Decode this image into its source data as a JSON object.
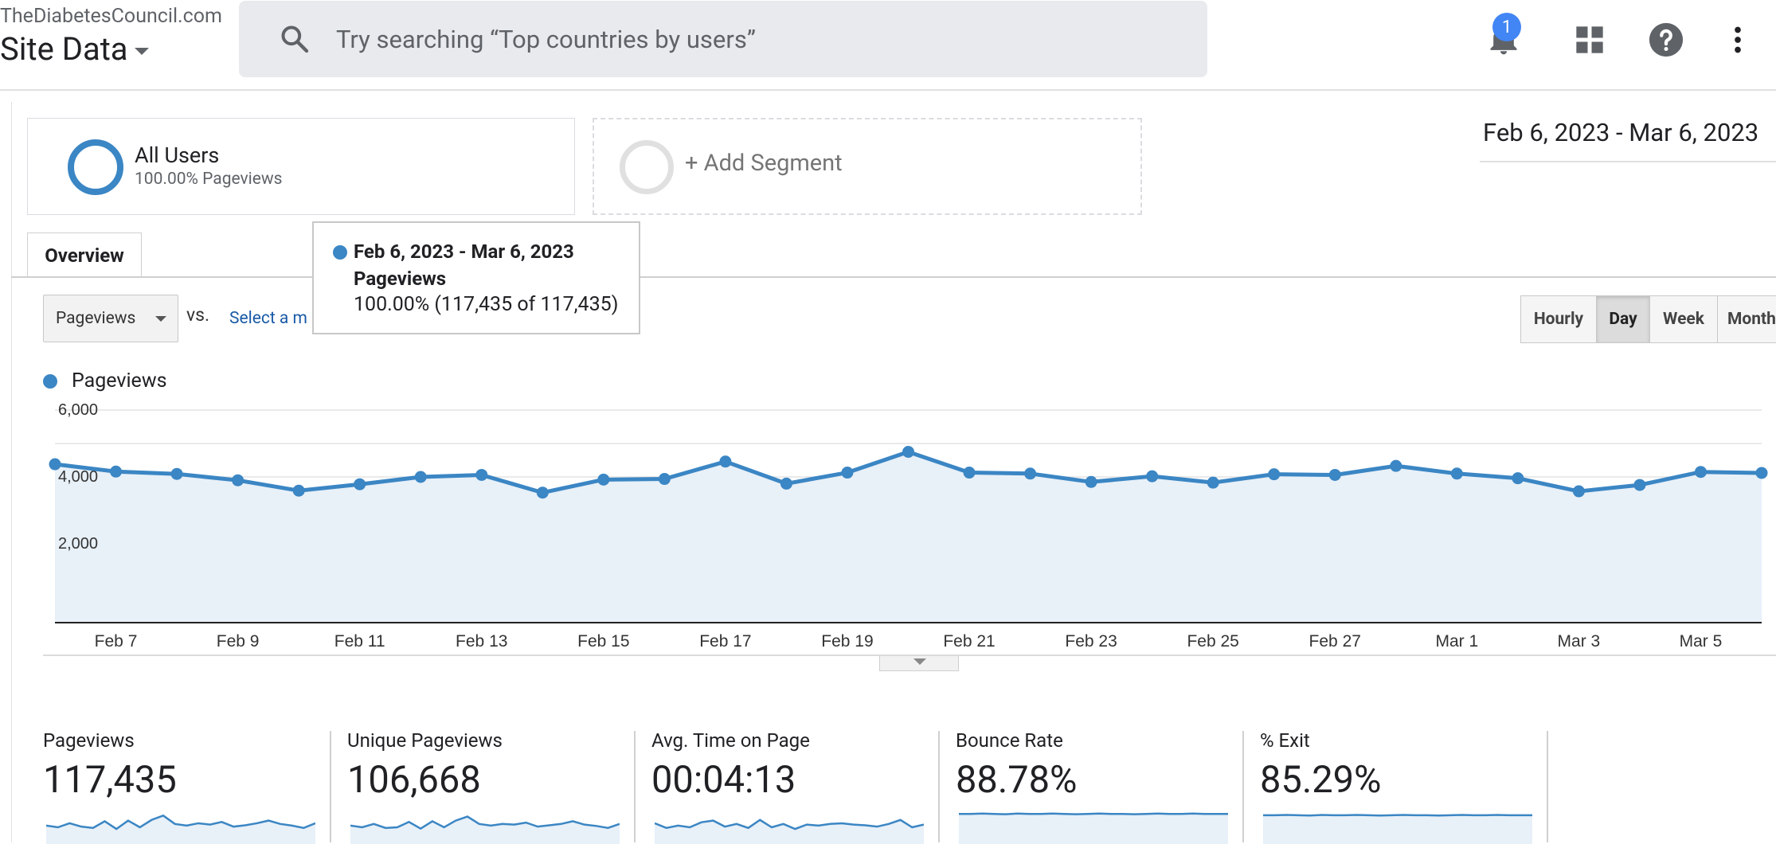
{
  "header": {
    "account": "TheDiabetesCouncil.com",
    "property": "Site Data",
    "search_placeholder": "Try searching “Top countries by users”",
    "notification_count": "1",
    "icons": [
      "search-icon",
      "bell-icon",
      "apps-grid-icon",
      "help-icon",
      "more-vert-icon"
    ]
  },
  "segments": {
    "all_users": {
      "name": "All Users",
      "sub": "100.00% Pageviews"
    },
    "add": "+ Add Segment"
  },
  "date_range": "Feb 6, 2023 - Mar 6, 2023",
  "tabs": {
    "overview": "Overview"
  },
  "controls": {
    "metric_select": "Pageviews",
    "vs": "vs.",
    "select_metric": "Select a m",
    "time_buttons": [
      "Hourly",
      "Day",
      "Week",
      "Month"
    ],
    "active_time": "Day"
  },
  "tooltip": {
    "range": "Feb 6, 2023 - Mar 6, 2023",
    "metric": "Pageviews",
    "value": "100.00% (117,435 of 117,435)"
  },
  "colors": {
    "accent": "#3b86c4",
    "area": "#e8f0f8",
    "link": "#1a5aa6"
  },
  "chart_data": {
    "type": "area",
    "title": "",
    "legend": [
      "Pageviews"
    ],
    "ylabel": "",
    "ylim": [
      0,
      6000
    ],
    "y_ticks": [
      "6,000",
      "4,000",
      "2,000"
    ],
    "x_tick_labels": [
      "Feb 7",
      "Feb 9",
      "Feb 11",
      "Feb 13",
      "Feb 15",
      "Feb 17",
      "Feb 19",
      "Feb 21",
      "Feb 23",
      "Feb 25",
      "Feb 27",
      "Mar 1",
      "Mar 3",
      "Mar 5"
    ],
    "x": [
      "Feb 6",
      "Feb 7",
      "Feb 8",
      "Feb 9",
      "Feb 10",
      "Feb 11",
      "Feb 12",
      "Feb 13",
      "Feb 14",
      "Feb 15",
      "Feb 16",
      "Feb 17",
      "Feb 18",
      "Feb 19",
      "Feb 20",
      "Feb 21",
      "Feb 22",
      "Feb 23",
      "Feb 24",
      "Feb 25",
      "Feb 26",
      "Feb 27",
      "Feb 28",
      "Mar 1",
      "Mar 2",
      "Mar 3",
      "Mar 4",
      "Mar 5",
      "Mar 6"
    ],
    "series": [
      {
        "name": "Pageviews",
        "values": [
          4380,
          4160,
          4090,
          3900,
          3590,
          3780,
          4000,
          4060,
          3530,
          3920,
          3940,
          4460,
          3800,
          4130,
          4750,
          4130,
          4100,
          3850,
          4020,
          3830,
          4080,
          4060,
          4330,
          4100,
          3960,
          3570,
          3760,
          4150,
          4120
        ]
      }
    ]
  },
  "scorecards": [
    {
      "label": "Pageviews",
      "value": "117,435",
      "spark": [
        0.55,
        0.5,
        0.62,
        0.52,
        0.48,
        0.68,
        0.45,
        0.7,
        0.5,
        0.72,
        0.85,
        0.6,
        0.55,
        0.62,
        0.58,
        0.66,
        0.52,
        0.56,
        0.62,
        0.7,
        0.6,
        0.55,
        0.48,
        0.62
      ]
    },
    {
      "label": "Unique Pageviews",
      "value": "106,668",
      "spark": [
        0.55,
        0.5,
        0.6,
        0.48,
        0.5,
        0.66,
        0.46,
        0.68,
        0.5,
        0.7,
        0.82,
        0.6,
        0.55,
        0.6,
        0.58,
        0.64,
        0.52,
        0.56,
        0.6,
        0.68,
        0.58,
        0.54,
        0.48,
        0.6
      ]
    },
    {
      "label": "Avg. Time on Page",
      "value": "00:04:13",
      "spark": [
        0.62,
        0.48,
        0.55,
        0.5,
        0.65,
        0.7,
        0.52,
        0.6,
        0.48,
        0.72,
        0.5,
        0.6,
        0.45,
        0.58,
        0.55,
        0.6,
        0.62,
        0.58,
        0.56,
        0.52,
        0.6,
        0.72,
        0.5,
        0.58
      ]
    },
    {
      "label": "Bounce Rate",
      "value": "88.78%",
      "spark": [
        0.9,
        0.9,
        0.91,
        0.9,
        0.89,
        0.91,
        0.9,
        0.9,
        0.91,
        0.9,
        0.89,
        0.9,
        0.91,
        0.9,
        0.9,
        0.89,
        0.9,
        0.91,
        0.9,
        0.9,
        0.91,
        0.9,
        0.9,
        0.9
      ]
    },
    {
      "label": "% Exit",
      "value": "85.29%",
      "spark": [
        0.86,
        0.86,
        0.87,
        0.86,
        0.85,
        0.87,
        0.86,
        0.86,
        0.87,
        0.86,
        0.85,
        0.86,
        0.87,
        0.86,
        0.86,
        0.85,
        0.86,
        0.87,
        0.86,
        0.86,
        0.87,
        0.86,
        0.86,
        0.86
      ]
    }
  ]
}
